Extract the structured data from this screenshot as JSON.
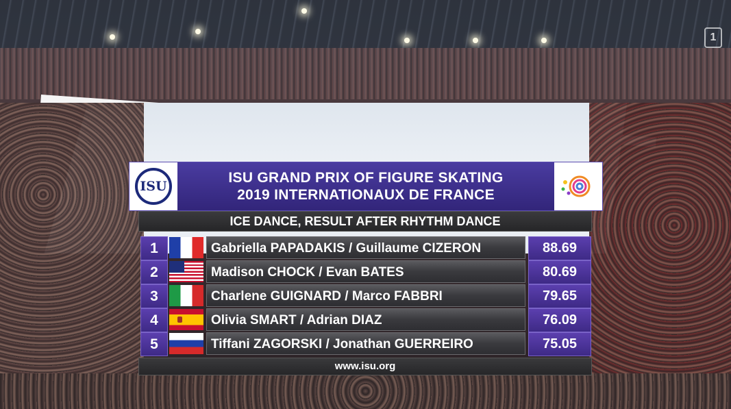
{
  "broadcast": {
    "channel_logo": "1"
  },
  "graphic": {
    "title_line1": "ISU GRAND PRIX OF FIGURE SKATING",
    "title_line2": "2019 INTERNATIONAUX DE FRANCE",
    "isu_logo_text": "ISU",
    "subtitle": "ICE DANCE, RESULT AFTER RHYTHM DANCE",
    "footer": "www.isu.org",
    "colors": {
      "accent_purple": "#3e2a86",
      "header_purple": "#2b1f6e",
      "row_gray": "#3a3a3e"
    }
  },
  "results": [
    {
      "rank": "1",
      "flag": "france-flag-icon",
      "flag_class": "fr",
      "names": "Gabriella PAPADAKIS / Guillaume CIZERON",
      "score": "88.69"
    },
    {
      "rank": "2",
      "flag": "usa-flag-icon",
      "flag_class": "us",
      "names": "Madison CHOCK / Evan BATES",
      "score": "80.69"
    },
    {
      "rank": "3",
      "flag": "italy-flag-icon",
      "flag_class": "it",
      "names": "Charlene GUIGNARD / Marco FABBRI",
      "score": "79.65"
    },
    {
      "rank": "4",
      "flag": "spain-flag-icon",
      "flag_class": "es",
      "names": "Olivia SMART / Adrian DIAZ",
      "score": "76.09"
    },
    {
      "rank": "5",
      "flag": "russia-flag-icon",
      "flag_class": "ru",
      "names": "Tiffani ZAGORSKI / Jonathan GUERREIRO",
      "score": "75.05"
    }
  ]
}
